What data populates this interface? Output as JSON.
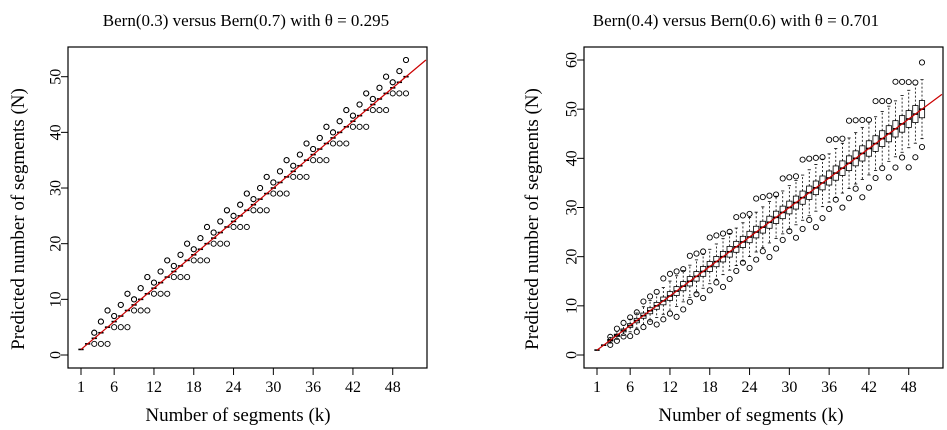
{
  "chart_data": [
    {
      "type": "boxplot",
      "title": "Bern(0.3) versus Bern(0.7) with θ = 0.295",
      "xlabel": "Number of segments (k)",
      "ylabel": "Predicted number of segments (N)",
      "xlim": [
        1,
        50
      ],
      "ylim": [
        0,
        53
      ],
      "xticks": [
        1,
        6,
        12,
        18,
        24,
        30,
        36,
        42,
        48
      ],
      "yticks": [
        0,
        10,
        20,
        30,
        40,
        50
      ],
      "reference_line": {
        "slope": 1,
        "intercept": 0,
        "color": "#cc0000"
      },
      "spread": 1.2,
      "box_half_width_k": 0.5
    },
    {
      "type": "boxplot",
      "title": "Bern(0.4) versus Bern(0.6) with θ = 0.701",
      "xlabel": "Number of segments (k)",
      "ylabel": "Predicted number of segments (N)",
      "xlim": [
        1,
        50
      ],
      "ylim": [
        0,
        60
      ],
      "xticks": [
        1,
        6,
        12,
        18,
        24,
        30,
        36,
        42,
        48
      ],
      "yticks": [
        0,
        10,
        20,
        30,
        40,
        50,
        60
      ],
      "reference_line": {
        "slope": 1,
        "intercept": 0,
        "color": "#cc0000"
      },
      "spread": 5.0,
      "box_half_width_k": 0.5
    }
  ]
}
